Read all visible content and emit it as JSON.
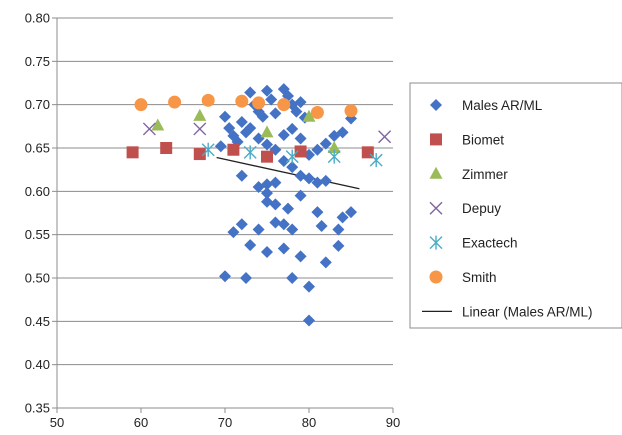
{
  "chart_data": {
    "type": "scatter",
    "title": "",
    "xlabel": "",
    "ylabel": "",
    "xlim": [
      50,
      90
    ],
    "ylim": [
      0.35,
      0.8
    ],
    "x_ticks": [
      "50",
      "60",
      "70",
      "80",
      "90"
    ],
    "y_ticks": [
      "0.35",
      "0.40",
      "0.45",
      "0.50",
      "0.55",
      "0.60",
      "0.65",
      "0.70",
      "0.75",
      "0.80"
    ],
    "grid": "horizontal",
    "legend_position": "right",
    "series": [
      {
        "name": "Males AR/ML",
        "marker": "diamond",
        "color": "#4472C4",
        "points": [
          [
            69.5,
            0.652
          ],
          [
            70,
            0.686
          ],
          [
            70.5,
            0.673
          ],
          [
            71,
            0.664
          ],
          [
            71.5,
            0.657
          ],
          [
            72,
            0.68
          ],
          [
            72.5,
            0.668
          ],
          [
            73,
            0.714
          ],
          [
            73.5,
            0.7
          ],
          [
            74,
            0.692
          ],
          [
            74.5,
            0.686
          ],
          [
            75,
            0.716
          ],
          [
            75.5,
            0.706
          ],
          [
            76,
            0.69
          ],
          [
            77,
            0.718
          ],
          [
            77.5,
            0.71
          ],
          [
            78,
            0.7
          ],
          [
            78.5,
            0.692
          ],
          [
            79,
            0.703
          ],
          [
            79.5,
            0.685
          ],
          [
            73,
            0.673
          ],
          [
            74,
            0.661
          ],
          [
            75,
            0.654
          ],
          [
            76,
            0.648
          ],
          [
            77,
            0.665
          ],
          [
            78,
            0.672
          ],
          [
            79,
            0.661
          ],
          [
            80,
            0.642
          ],
          [
            81,
            0.648
          ],
          [
            82,
            0.655
          ],
          [
            83,
            0.664
          ],
          [
            84,
            0.668
          ],
          [
            85,
            0.684
          ],
          [
            72,
            0.618
          ],
          [
            74,
            0.605
          ],
          [
            75,
            0.598
          ],
          [
            76,
            0.61
          ],
          [
            77,
            0.635
          ],
          [
            78,
            0.628
          ],
          [
            79,
            0.618
          ],
          [
            80,
            0.615
          ],
          [
            81,
            0.61
          ],
          [
            82,
            0.612
          ],
          [
            75,
            0.588
          ],
          [
            76,
            0.585
          ],
          [
            77.5,
            0.58
          ],
          [
            79,
            0.595
          ],
          [
            76,
            0.564
          ],
          [
            77,
            0.562
          ],
          [
            78,
            0.556
          ],
          [
            81,
            0.576
          ],
          [
            81.5,
            0.56
          ],
          [
            84,
            0.57
          ],
          [
            85,
            0.576
          ],
          [
            83.5,
            0.556
          ],
          [
            72,
            0.562
          ],
          [
            71,
            0.553
          ],
          [
            74,
            0.556
          ],
          [
            73,
            0.538
          ],
          [
            75,
            0.53
          ],
          [
            77,
            0.534
          ],
          [
            79,
            0.525
          ],
          [
            82,
            0.518
          ],
          [
            83.5,
            0.537
          ],
          [
            70,
            0.502
          ],
          [
            72.5,
            0.5
          ],
          [
            78,
            0.5
          ],
          [
            80,
            0.49
          ],
          [
            80,
            0.451
          ],
          [
            75,
            0.608
          ]
        ]
      },
      {
        "name": "Biomet",
        "marker": "square",
        "color": "#C0504D",
        "points": [
          [
            59,
            0.645
          ],
          [
            63,
            0.65
          ],
          [
            67,
            0.643
          ],
          [
            71,
            0.648
          ],
          [
            75,
            0.64
          ],
          [
            79,
            0.646
          ],
          [
            87,
            0.645
          ]
        ]
      },
      {
        "name": "Zimmer",
        "marker": "triangle",
        "color": "#9BBB59",
        "points": [
          [
            62,
            0.676
          ],
          [
            67,
            0.687
          ],
          [
            75,
            0.668
          ],
          [
            80,
            0.686
          ],
          [
            83,
            0.65
          ]
        ]
      },
      {
        "name": "Depuy",
        "marker": "x",
        "color": "#8064A2",
        "points": [
          [
            61,
            0.672
          ],
          [
            67,
            0.672
          ],
          [
            89,
            0.663
          ]
        ]
      },
      {
        "name": "Exactech",
        "marker": "asterisk",
        "color": "#4BACC6",
        "points": [
          [
            68,
            0.648
          ],
          [
            73,
            0.645
          ],
          [
            78,
            0.64
          ],
          [
            83,
            0.64
          ],
          [
            88,
            0.636
          ]
        ]
      },
      {
        "name": "Smith",
        "marker": "circle",
        "color": "#F79646",
        "points": [
          [
            60,
            0.7
          ],
          [
            64,
            0.703
          ],
          [
            68,
            0.705
          ],
          [
            72,
            0.704
          ],
          [
            74,
            0.702
          ],
          [
            77,
            0.7
          ],
          [
            81,
            0.691
          ],
          [
            85,
            0.693
          ]
        ]
      }
    ],
    "trendline": {
      "name": "Linear (Males AR/ML)",
      "color": "#222222",
      "points": [
        [
          69,
          0.639
        ],
        [
          86,
          0.603
        ]
      ]
    }
  }
}
